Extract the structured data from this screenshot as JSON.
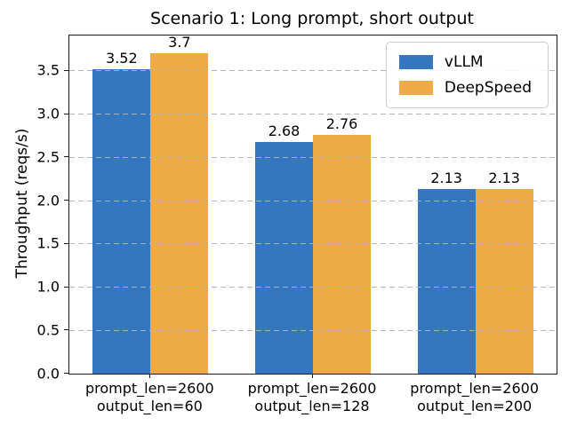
{
  "chart_data": {
    "type": "bar",
    "title": "Scenario 1: Long prompt, short output",
    "ylabel": "Throughput (reqs/s)",
    "xlabel": "",
    "categories": [
      [
        "prompt_len=2600",
        "output_len=60"
      ],
      [
        "prompt_len=2600",
        "output_len=128"
      ],
      [
        "prompt_len=2600",
        "output_len=200"
      ]
    ],
    "series": [
      {
        "name": "vLLM",
        "color": "#3577be",
        "values": [
          3.52,
          2.68,
          2.13
        ]
      },
      {
        "name": "DeepSpeed",
        "color": "#eeaa47",
        "values": [
          3.7,
          2.76,
          2.13
        ]
      }
    ],
    "bar_value_labels": [
      [
        "3.52",
        "2.68",
        "2.13"
      ],
      [
        "3.7",
        "2.76",
        "2.13"
      ]
    ],
    "ytick_labels": [
      "0.0",
      "0.5",
      "1.0",
      "1.5",
      "2.0",
      "2.5",
      "3.0",
      "3.5"
    ],
    "ylim": [
      0,
      3.91
    ],
    "grid": {
      "axis": "y",
      "linestyle": "dashed",
      "color": "#b2b2b2",
      "drawn_over_bars": true
    },
    "legend": {
      "position": "upper right",
      "entries": [
        "vLLM",
        "DeepSpeed"
      ]
    }
  }
}
